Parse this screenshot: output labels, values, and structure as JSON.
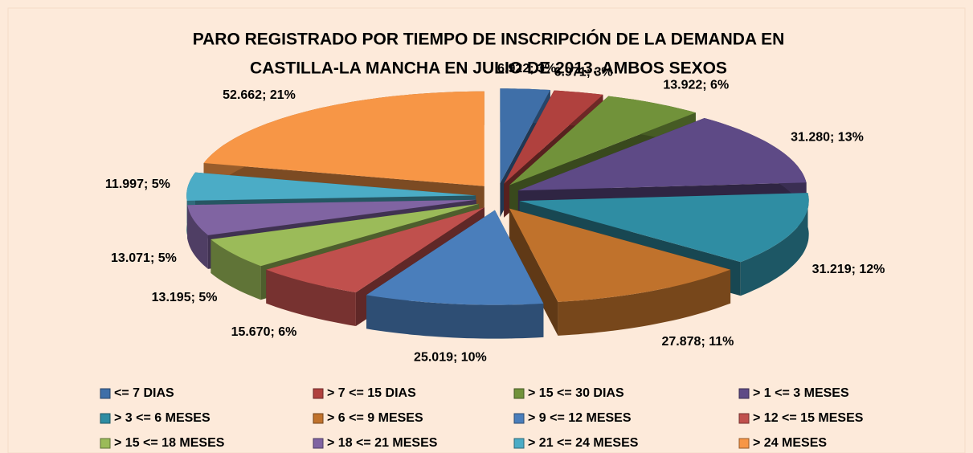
{
  "chart_data": {
    "type": "pie3d",
    "title": [
      "PARO REGISTRADO POR TIEMPO DE INSCRIPCIÓN DE LA DEMANDA EN",
      "CASTILLA-LA MANCHA EN JULIO DE 2013. AMBOS SEXOS"
    ],
    "categories": [
      "<= 7 DIAS",
      "> 7 <= 15 DIAS",
      "> 15 <= 30 DIAS",
      "> 1 <= 3 MESES",
      "> 3 <= 6 MESES",
      "> 6 <= 9 MESES",
      "> 9 <= 12 MESES",
      "> 12 <= 15 MESES",
      "> 15 <= 18 MESES",
      "> 18 <= 21 MESES",
      "> 21 <= 24 MESES",
      "> 24 MESES"
    ],
    "values": [
      6922,
      6971,
      13922,
      31280,
      31219,
      27878,
      25019,
      15670,
      13195,
      13071,
      11997,
      52662
    ],
    "value_labels": [
      "6.922; 3%",
      "6.971; 3%",
      "13.922; 6%",
      "31.280; 13%",
      "31.219; 12%",
      "27.878; 11%",
      "25.019; 10%",
      "15.670; 6%",
      "13.195; 5%",
      "13.071; 5%",
      "11.997; 5%",
      "52.662; 21%"
    ],
    "colors": [
      "#3f6fa8",
      "#b0413e",
      "#71923a",
      "#5e4a86",
      "#2f8da3",
      "#c0722c",
      "#4a7ebb",
      "#c0504d",
      "#9bbb59",
      "#8064a2",
      "#4bacc6",
      "#f79646"
    ],
    "legend": "bottom"
  }
}
